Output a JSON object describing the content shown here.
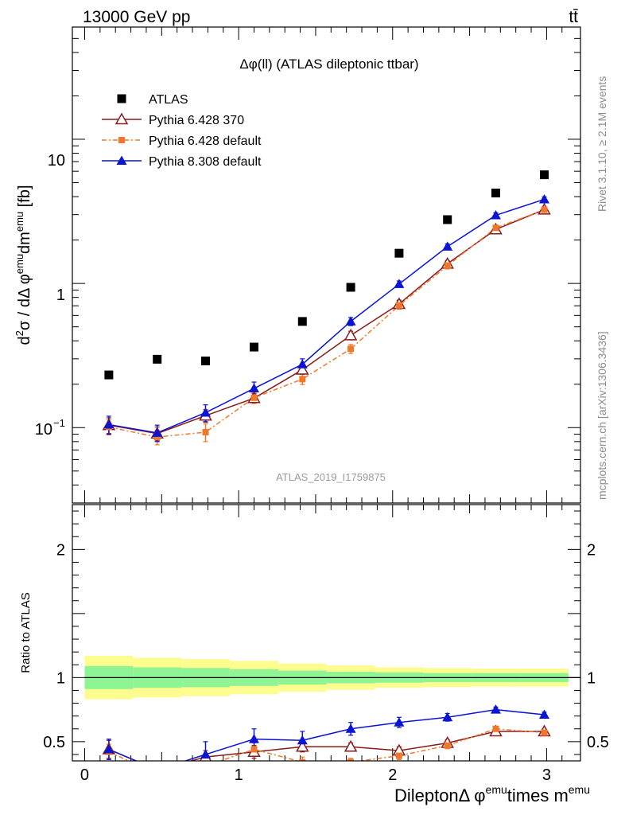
{
  "header": {
    "left": "13000 GeV pp",
    "right": "tt̄"
  },
  "side_labels": {
    "rivet": "Rivet 3.1.10, ≥ 2.1M events",
    "mcplots": "mcplots.cern.ch [arXiv:1306.3436]"
  },
  "chart_data": [
    {
      "type": "scatter",
      "panel": "main",
      "title": "Δφ(ll) (ATLAS dileptonic ttbar)",
      "watermark": "ATLAS_2019_I1759875",
      "ylabel": {
        "a": "d",
        "sup1": "2",
        "b": "σ / dΔ φ",
        "sup2": "emu",
        "c": "dm",
        "sup3": "emu",
        "d": " [fb]"
      },
      "yscale": "log",
      "ylim": [
        0.03,
        60
      ],
      "xlim": [
        -0.08,
        3.22
      ],
      "ytick_labels": {
        "t0": "10",
        "t0_exp": "−1",
        "t1": "1",
        "t2": "10"
      },
      "x": [
        0.157,
        0.471,
        0.785,
        1.1,
        1.414,
        1.728,
        2.042,
        2.356,
        2.67,
        2.985
      ],
      "series": [
        {
          "name": "ATLAS",
          "values": [
            0.232,
            0.298,
            0.29,
            0.362,
            0.545,
            0.94,
            1.62,
            2.77,
            4.24,
            5.67
          ],
          "color": "#000000",
          "marker": "square"
        },
        {
          "name": "Pythia 6.428 370",
          "values": [
            0.104,
            0.091,
            0.121,
            0.16,
            0.252,
            0.436,
            0.72,
            1.37,
            2.37,
            3.25
          ],
          "errors": [
            0.013,
            0.01,
            0.012,
            0.012,
            0.018,
            0.03,
            0.045,
            0.07,
            0.1,
            0.12
          ],
          "color": "#8b1a1a",
          "marker": "triangle-open"
        },
        {
          "name": "Pythia 6.428 default",
          "values": [
            0.101,
            0.086,
            0.093,
            0.161,
            0.217,
            0.352,
            0.703,
            1.33,
            2.43,
            3.24
          ],
          "errors": [
            0.012,
            0.01,
            0.013,
            0.014,
            0.018,
            0.025,
            0.04,
            0.07,
            0.1,
            0.12
          ],
          "color": "#f0782a",
          "marker": "square-small",
          "dashed": true
        },
        {
          "name": "Pythia 8.308 default",
          "values": [
            0.105,
            0.092,
            0.127,
            0.187,
            0.275,
            0.545,
            0.99,
            1.8,
            2.97,
            3.83
          ],
          "errors": [
            0.015,
            0.012,
            0.017,
            0.02,
            0.025,
            0.035,
            0.05,
            0.08,
            0.12,
            0.15
          ],
          "color": "#0a14d2",
          "marker": "triangle-filled"
        }
      ]
    },
    {
      "type": "line",
      "panel": "ratio",
      "ylabel": "Ratio to ATLAS",
      "ylim": [
        0.35,
        2.35
      ],
      "yticks": [
        0.5,
        1,
        2
      ],
      "ytick_labels": [
        "0.5",
        "1",
        "2"
      ],
      "xticks": [
        0,
        1,
        2,
        3
      ],
      "xtick_labels": [
        "0",
        "1",
        "2",
        "3"
      ],
      "xlabel": {
        "a": "DileptonΔ φ",
        "sup1": "emu",
        "b": "times m",
        "sup2": "emu"
      },
      "bin_edges": [
        0,
        0.314,
        0.628,
        0.942,
        1.257,
        1.571,
        1.885,
        2.199,
        2.513,
        2.827,
        3.142
      ],
      "band_inner": [
        0.09,
        0.08,
        0.075,
        0.065,
        0.055,
        0.045,
        0.04,
        0.035,
        0.035,
        0.035
      ],
      "band_outer": [
        0.17,
        0.155,
        0.145,
        0.13,
        0.11,
        0.095,
        0.08,
        0.075,
        0.07,
        0.07
      ],
      "series": [
        {
          "name": "Pythia 6.428 370",
          "values": [
            0.44,
            0.28,
            0.38,
            0.42,
            0.46,
            0.46,
            0.43,
            0.49,
            0.58,
            0.58
          ],
          "errors": [
            0.07,
            0.05,
            0.05,
            0.05,
            0.04,
            0.03,
            0.03,
            0.025,
            0.02,
            0.02
          ]
        },
        {
          "name": "Pythia 6.428 default",
          "values": [
            0.42,
            0.25,
            0.31,
            0.44,
            0.34,
            0.34,
            0.39,
            0.47,
            0.6,
            0.57
          ],
          "errors": [
            0.06,
            0.05,
            0.05,
            0.05,
            0.04,
            0.03,
            0.03,
            0.025,
            0.02,
            0.02
          ]
        },
        {
          "name": "Pythia 8.308 default",
          "values": [
            0.44,
            0.28,
            0.4,
            0.52,
            0.51,
            0.6,
            0.65,
            0.69,
            0.75,
            0.71
          ],
          "errors": [
            0.08,
            0.05,
            0.1,
            0.08,
            0.07,
            0.05,
            0.04,
            0.03,
            0.02,
            0.02
          ]
        }
      ]
    }
  ]
}
